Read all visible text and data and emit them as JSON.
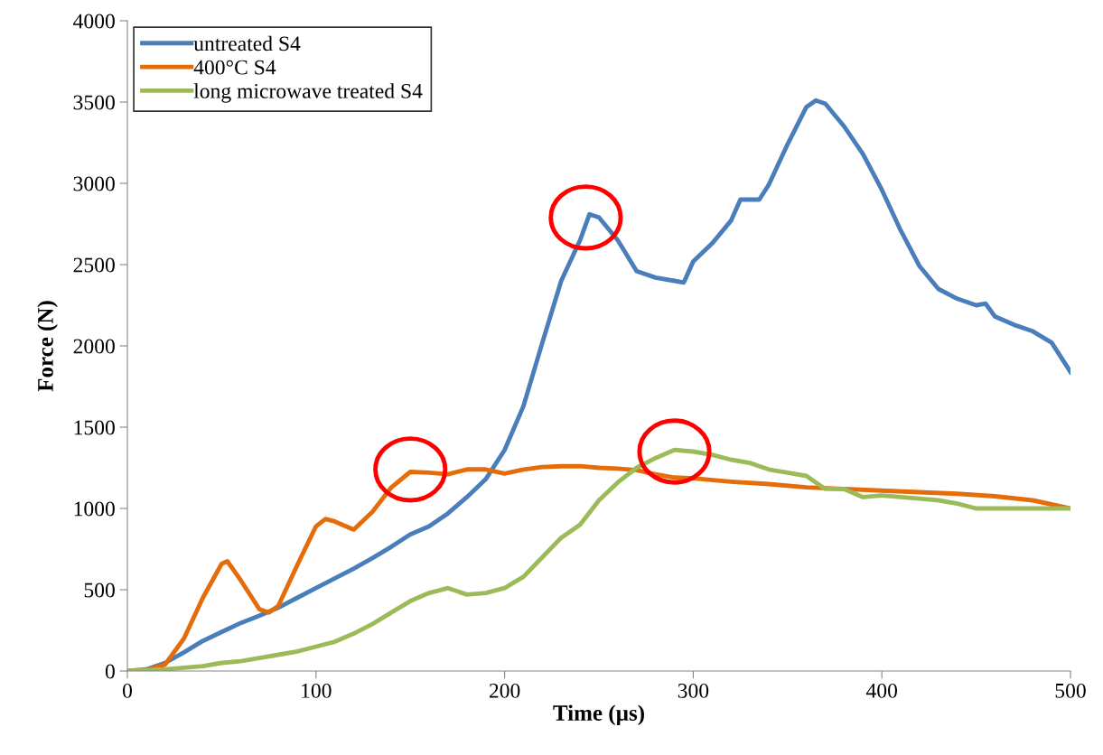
{
  "chart_data": {
    "type": "line",
    "xlabel": "Time (µs)",
    "ylabel": "Force (N)",
    "xlim": [
      0,
      500
    ],
    "ylim": [
      0,
      4000
    ],
    "xticks": [
      0,
      100,
      200,
      300,
      400,
      500
    ],
    "yticks": [
      0,
      500,
      1000,
      1500,
      2000,
      2500,
      3000,
      3500,
      4000
    ],
    "grid": false,
    "legend": "top left",
    "marker": "none",
    "line_style": "solid",
    "series": [
      {
        "name": "untreated S4",
        "color": "#4a7ebb",
        "x": [
          0,
          10,
          20,
          30,
          40,
          50,
          60,
          70,
          80,
          90,
          100,
          110,
          120,
          130,
          140,
          150,
          160,
          170,
          180,
          190,
          200,
          210,
          220,
          230,
          240,
          245,
          250,
          260,
          270,
          280,
          290,
          295,
          300,
          310,
          320,
          325,
          335,
          340,
          350,
          360,
          365,
          370,
          380,
          390,
          400,
          410,
          420,
          430,
          440,
          450,
          455,
          460,
          470,
          480,
          490,
          500
        ],
        "values": [
          0,
          10,
          50,
          115,
          185,
          240,
          295,
          340,
          390,
          450,
          510,
          570,
          630,
          695,
          765,
          840,
          890,
          970,
          1070,
          1180,
          1360,
          1630,
          2020,
          2400,
          2650,
          2810,
          2790,
          2650,
          2460,
          2420,
          2400,
          2390,
          2520,
          2630,
          2770,
          2900,
          2900,
          2990,
          3240,
          3470,
          3510,
          3490,
          3350,
          3180,
          2960,
          2710,
          2490,
          2350,
          2290,
          2250,
          2260,
          2180,
          2130,
          2090,
          2020,
          1840
        ]
      },
      {
        "name": "400°C S4",
        "color": "#e46c0a",
        "x": [
          0,
          10,
          20,
          30,
          40,
          50,
          53,
          60,
          70,
          75,
          80,
          90,
          100,
          105,
          110,
          120,
          130,
          140,
          150,
          160,
          170,
          180,
          190,
          200,
          210,
          220,
          230,
          240,
          250,
          260,
          270,
          280,
          290,
          300,
          320,
          340,
          360,
          380,
          400,
          420,
          440,
          460,
          480,
          500
        ],
        "values": [
          0,
          5,
          40,
          200,
          450,
          660,
          675,
          560,
          380,
          360,
          400,
          650,
          890,
          935,
          920,
          870,
          980,
          1130,
          1225,
          1220,
          1210,
          1240,
          1240,
          1215,
          1240,
          1255,
          1260,
          1260,
          1250,
          1245,
          1235,
          1210,
          1190,
          1185,
          1165,
          1150,
          1130,
          1120,
          1110,
          1100,
          1090,
          1075,
          1050,
          1000
        ]
      },
      {
        "name": "long microwave treated S4",
        "color": "#9bbb59",
        "x": [
          0,
          20,
          30,
          40,
          50,
          60,
          70,
          80,
          90,
          100,
          110,
          120,
          130,
          140,
          150,
          160,
          170,
          180,
          190,
          200,
          210,
          220,
          230,
          240,
          250,
          260,
          270,
          280,
          290,
          300,
          310,
          320,
          330,
          340,
          350,
          360,
          370,
          380,
          390,
          400,
          410,
          420,
          430,
          440,
          450,
          460,
          480,
          490,
          500
        ],
        "values": [
          0,
          10,
          20,
          30,
          50,
          60,
          80,
          100,
          120,
          150,
          180,
          230,
          290,
          360,
          430,
          480,
          510,
          470,
          480,
          510,
          580,
          700,
          820,
          900,
          1050,
          1160,
          1250,
          1310,
          1360,
          1350,
          1330,
          1300,
          1280,
          1240,
          1220,
          1200,
          1120,
          1120,
          1070,
          1080,
          1070,
          1060,
          1050,
          1030,
          1000,
          1000,
          1000,
          1000,
          1000
        ]
      }
    ]
  }
}
